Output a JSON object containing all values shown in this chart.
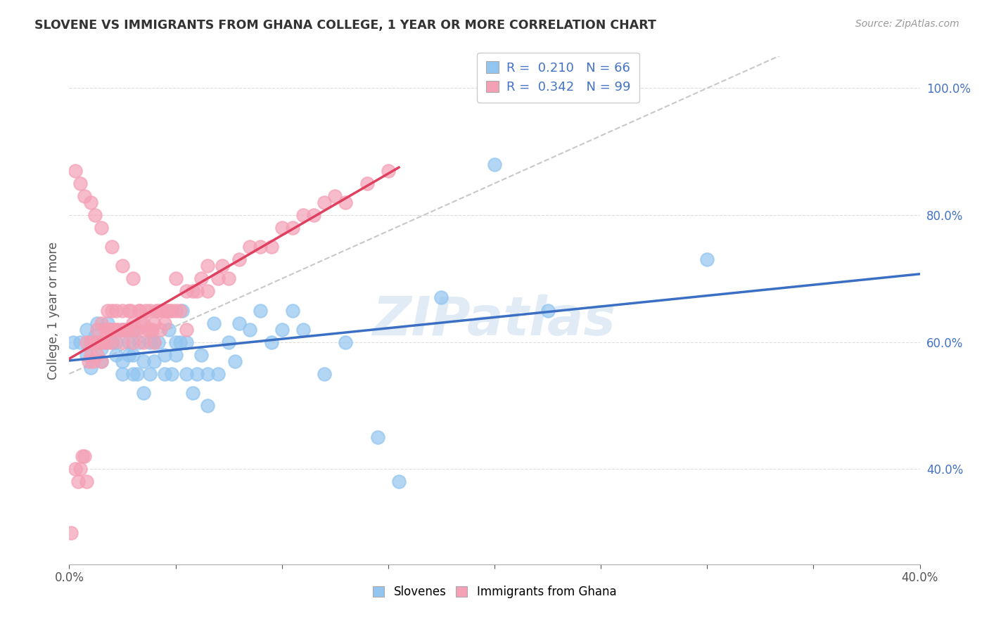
{
  "title": "SLOVENE VS IMMIGRANTS FROM GHANA COLLEGE, 1 YEAR OR MORE CORRELATION CHART",
  "source": "Source: ZipAtlas.com",
  "ylabel": "College, 1 year or more",
  "xlim": [
    0.0,
    0.4
  ],
  "ylim": [
    0.25,
    1.05
  ],
  "xticks": [
    0.0,
    0.05,
    0.1,
    0.15,
    0.2,
    0.25,
    0.3,
    0.35,
    0.4
  ],
  "xticklabels": [
    "0.0%",
    "",
    "",
    "",
    "",
    "",
    "",
    "",
    "40.0%"
  ],
  "yticks_right": [
    0.4,
    0.6,
    0.8,
    1.0
  ],
  "yticklabels_right": [
    "40.0%",
    "60.0%",
    "80.0%",
    "100.0%"
  ],
  "color_blue": "#92C5F0",
  "color_pink": "#F4A0B5",
  "color_line_blue": "#3A6FC4",
  "color_line_pink": "#E04060",
  "color_line_gray": "#C8C8C8",
  "watermark": "ZIPatlas",
  "scatter_slovenes_x": [
    0.002,
    0.005,
    0.008,
    0.008,
    0.01,
    0.01,
    0.012,
    0.013,
    0.015,
    0.015,
    0.017,
    0.018,
    0.02,
    0.022,
    0.022,
    0.025,
    0.025,
    0.025,
    0.028,
    0.028,
    0.03,
    0.03,
    0.03,
    0.032,
    0.033,
    0.035,
    0.035,
    0.038,
    0.038,
    0.04,
    0.04,
    0.042,
    0.045,
    0.045,
    0.047,
    0.048,
    0.05,
    0.05,
    0.052,
    0.053,
    0.055,
    0.055,
    0.058,
    0.06,
    0.062,
    0.065,
    0.065,
    0.068,
    0.07,
    0.075,
    0.078,
    0.08,
    0.085,
    0.09,
    0.095,
    0.1,
    0.105,
    0.11,
    0.12,
    0.13,
    0.145,
    0.155,
    0.175,
    0.2,
    0.225,
    0.3
  ],
  "scatter_slovenes_y": [
    0.6,
    0.6,
    0.62,
    0.58,
    0.6,
    0.56,
    0.61,
    0.63,
    0.59,
    0.57,
    0.6,
    0.63,
    0.6,
    0.6,
    0.58,
    0.57,
    0.55,
    0.62,
    0.58,
    0.6,
    0.55,
    0.58,
    0.62,
    0.55,
    0.6,
    0.52,
    0.57,
    0.55,
    0.6,
    0.57,
    0.6,
    0.6,
    0.55,
    0.58,
    0.62,
    0.55,
    0.58,
    0.6,
    0.6,
    0.65,
    0.55,
    0.6,
    0.52,
    0.55,
    0.58,
    0.5,
    0.55,
    0.63,
    0.55,
    0.6,
    0.57,
    0.63,
    0.62,
    0.65,
    0.6,
    0.62,
    0.65,
    0.62,
    0.55,
    0.6,
    0.45,
    0.38,
    0.67,
    0.88,
    0.65,
    0.73
  ],
  "scatter_ghana_x": [
    0.001,
    0.003,
    0.004,
    0.005,
    0.006,
    0.007,
    0.008,
    0.008,
    0.009,
    0.01,
    0.01,
    0.011,
    0.012,
    0.013,
    0.013,
    0.014,
    0.015,
    0.015,
    0.015,
    0.016,
    0.017,
    0.018,
    0.018,
    0.018,
    0.019,
    0.02,
    0.02,
    0.02,
    0.021,
    0.022,
    0.022,
    0.023,
    0.025,
    0.025,
    0.025,
    0.026,
    0.027,
    0.028,
    0.028,
    0.029,
    0.03,
    0.03,
    0.031,
    0.032,
    0.033,
    0.033,
    0.034,
    0.035,
    0.035,
    0.036,
    0.037,
    0.038,
    0.038,
    0.039,
    0.04,
    0.04,
    0.041,
    0.042,
    0.043,
    0.044,
    0.045,
    0.046,
    0.047,
    0.048,
    0.05,
    0.05,
    0.052,
    0.055,
    0.055,
    0.058,
    0.06,
    0.062,
    0.065,
    0.065,
    0.07,
    0.072,
    0.075,
    0.08,
    0.085,
    0.09,
    0.095,
    0.1,
    0.105,
    0.11,
    0.115,
    0.12,
    0.125,
    0.13,
    0.14,
    0.15,
    0.003,
    0.005,
    0.007,
    0.01,
    0.012,
    0.015,
    0.02,
    0.025,
    0.03
  ],
  "scatter_ghana_y": [
    0.3,
    0.4,
    0.38,
    0.4,
    0.42,
    0.42,
    0.38,
    0.6,
    0.57,
    0.58,
    0.6,
    0.57,
    0.6,
    0.58,
    0.62,
    0.6,
    0.57,
    0.6,
    0.63,
    0.6,
    0.62,
    0.6,
    0.62,
    0.65,
    0.62,
    0.6,
    0.62,
    0.65,
    0.62,
    0.62,
    0.65,
    0.62,
    0.6,
    0.62,
    0.65,
    0.62,
    0.62,
    0.62,
    0.65,
    0.65,
    0.6,
    0.63,
    0.62,
    0.62,
    0.65,
    0.65,
    0.63,
    0.6,
    0.63,
    0.65,
    0.62,
    0.62,
    0.65,
    0.62,
    0.6,
    0.63,
    0.65,
    0.65,
    0.62,
    0.65,
    0.63,
    0.65,
    0.65,
    0.65,
    0.65,
    0.7,
    0.65,
    0.68,
    0.62,
    0.68,
    0.68,
    0.7,
    0.68,
    0.72,
    0.7,
    0.72,
    0.7,
    0.73,
    0.75,
    0.75,
    0.75,
    0.78,
    0.78,
    0.8,
    0.8,
    0.82,
    0.83,
    0.82,
    0.85,
    0.87,
    0.87,
    0.85,
    0.83,
    0.82,
    0.8,
    0.78,
    0.75,
    0.72,
    0.7
  ]
}
